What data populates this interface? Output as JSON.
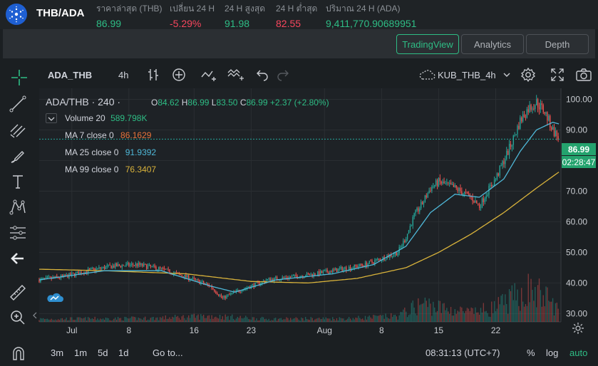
{
  "ticker": {
    "pair": "THB/ADA",
    "logo_icon": "cardano-icon",
    "stats": [
      {
        "label": "ราคาล่าสุด (THB)",
        "value": "86.99",
        "tone": "green"
      },
      {
        "label": "เปลี่ยน 24 H",
        "value": "-5.29%",
        "tone": "red"
      },
      {
        "label": "24 H สูงสุด",
        "value": "91.98",
        "tone": "green"
      },
      {
        "label": "24 H ต่ำสุด",
        "value": "82.55",
        "tone": "red"
      },
      {
        "label": "ปริมาณ 24 H (ADA)",
        "value": "9,411,770.90689951",
        "tone": "green"
      }
    ]
  },
  "tabs": [
    {
      "label": "TradingView",
      "active": true
    },
    {
      "label": "Analytics",
      "active": false
    },
    {
      "label": "Depth",
      "active": false
    }
  ],
  "toolbar": {
    "symbol": "ADA_THB",
    "interval": "4h",
    "layout_name": "KUB_THB_4h",
    "icons": [
      "crosshair-icon",
      "bar-style-icon",
      "add-indicator-icon",
      "indicators-icon",
      "compare-icon",
      "undo-icon",
      "redo-icon",
      "cloud-icon",
      "chevron-down-icon",
      "settings-icon",
      "fullscreen-icon",
      "camera-icon"
    ]
  },
  "tools": [
    "crosshair-icon",
    "trend-line-icon",
    "fib-icon",
    "brush-icon",
    "text-icon",
    "pattern-icon",
    "measure-icon",
    "back-arrow-icon",
    "ruler-icon",
    "zoom-in-icon",
    "magnet-icon"
  ],
  "legend": {
    "title": "ADA/THB · 240 ·",
    "o_label": "O",
    "open": "84.62",
    "h_label": "H",
    "high": "86.99",
    "l_label": "L",
    "low": "83.50",
    "c_label": "C",
    "close": "86.99",
    "change": "+2.37 (+2.80%)",
    "volume_label": "Volume 20",
    "volume_value": "589.798K",
    "ma7_label": "MA 7 close 0",
    "ma7_value": "86.1629",
    "ma25_label": "MA 25 close 0",
    "ma25_value": "91.9392",
    "ma99_label": "MA 99 close 0",
    "ma99_value": "76.3407"
  },
  "colors": {
    "up": "#26a69a",
    "down": "#ef5350",
    "ma7": "#e8733a",
    "ma25": "#4fb8d8",
    "ma99": "#d9b33b",
    "accent": "#2ebd85"
  },
  "price_tags": {
    "last_price": "86.99",
    "countdown": "02:28:47"
  },
  "bottom": {
    "ranges": [
      "3m",
      "1m",
      "5d",
      "1d"
    ],
    "goto": "Go to...",
    "clock": "08:31:13 (UTC+7)",
    "percent": "%",
    "log": "log",
    "auto": "auto"
  },
  "chart_data": {
    "type": "candlestick",
    "y_ticks": [
      "100.00",
      "90.00",
      "80.00",
      "70.00",
      "60.00",
      "50.00",
      "40.00",
      "30.00"
    ],
    "y_tick_values": [
      100,
      90,
      80,
      70,
      60,
      50,
      40,
      30
    ],
    "x_ticks": [
      "Jul",
      "8",
      "16",
      "23",
      "Aug",
      "8",
      "15",
      "22"
    ],
    "x_tick_days": [
      1,
      8,
      16,
      23,
      32,
      39,
      46,
      53
    ],
    "x_range_days": [
      -3,
      61
    ],
    "y_range": [
      27.3,
      103.6
    ],
    "last_price": 86.99,
    "price_path": [
      [
        -3,
        41
      ],
      [
        0,
        42
      ],
      [
        3,
        44
      ],
      [
        6,
        45.5
      ],
      [
        9,
        46
      ],
      [
        12,
        44.5
      ],
      [
        15,
        42
      ],
      [
        18,
        39
      ],
      [
        19.5,
        35
      ],
      [
        21,
        37
      ],
      [
        23,
        39
      ],
      [
        25,
        41
      ],
      [
        28,
        42
      ],
      [
        31,
        43
      ],
      [
        33,
        44
      ],
      [
        35,
        45
      ],
      [
        37,
        46
      ],
      [
        39,
        48
      ],
      [
        41,
        50
      ],
      [
        42,
        55
      ],
      [
        43,
        62
      ],
      [
        44,
        66
      ],
      [
        45,
        71
      ],
      [
        46,
        73
      ],
      [
        48,
        71
      ],
      [
        50,
        68
      ],
      [
        51,
        65
      ],
      [
        52,
        70
      ],
      [
        53,
        74
      ],
      [
        54,
        80
      ],
      [
        55,
        86
      ],
      [
        56,
        93
      ],
      [
        57,
        97
      ],
      [
        58,
        99
      ],
      [
        59,
        96
      ],
      [
        60,
        90
      ],
      [
        60.8,
        86.99
      ]
    ],
    "ma25_path": [
      [
        -3,
        41
      ],
      [
        5,
        44
      ],
      [
        12,
        44
      ],
      [
        18,
        39
      ],
      [
        21,
        37
      ],
      [
        26,
        41
      ],
      [
        33,
        43
      ],
      [
        38,
        46
      ],
      [
        42,
        52
      ],
      [
        45,
        63
      ],
      [
        48,
        69
      ],
      [
        51,
        68
      ],
      [
        54,
        74
      ],
      [
        56,
        83
      ],
      [
        58,
        90
      ],
      [
        60,
        92.5
      ],
      [
        60.8,
        91.94
      ]
    ],
    "ma99_path": [
      [
        -3,
        44.5
      ],
      [
        5,
        44
      ],
      [
        15,
        43
      ],
      [
        23,
        40.5
      ],
      [
        30,
        40
      ],
      [
        36,
        41.5
      ],
      [
        42,
        45
      ],
      [
        46,
        50
      ],
      [
        50,
        56
      ],
      [
        54,
        63
      ],
      [
        58,
        71
      ],
      [
        60.8,
        76.34
      ]
    ],
    "volume_profile": [
      [
        -3,
        5
      ],
      [
        10,
        6
      ],
      [
        18,
        10
      ],
      [
        25,
        5
      ],
      [
        35,
        6
      ],
      [
        41,
        10
      ],
      [
        44,
        32
      ],
      [
        47,
        22
      ],
      [
        50,
        16
      ],
      [
        53,
        25
      ],
      [
        55,
        40
      ],
      [
        57,
        55
      ],
      [
        59,
        45
      ],
      [
        60.8,
        20
      ]
    ]
  }
}
